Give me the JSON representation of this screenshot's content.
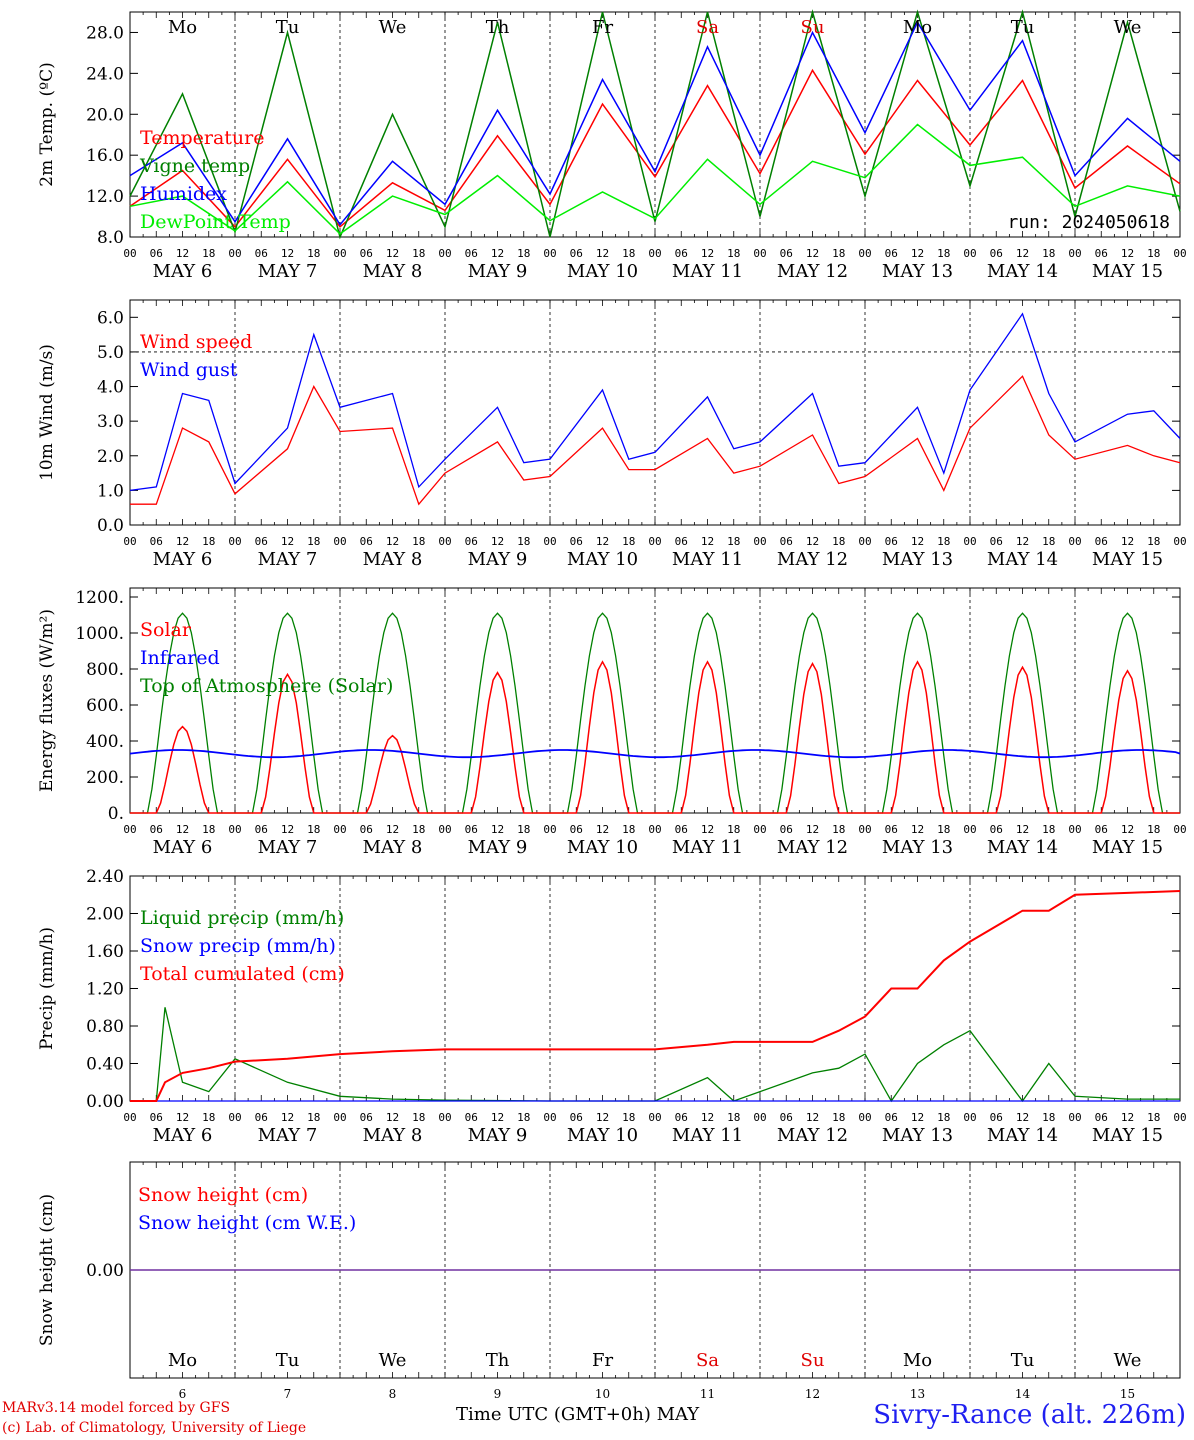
{
  "footer": {
    "model": "MARv3.14 model forced by GFS",
    "lab": "(c) Lab. of Climatology, University of Liege",
    "time_label": "Time UTC (GMT+0h) MAY",
    "site": "Sivry-Rance (alt. 226m)"
  },
  "chart_data": [
    {
      "type": "line",
      "ylabel": "2m Temp. (ºC)",
      "ylim": [
        8,
        30
      ],
      "yticks": [
        8,
        12,
        16,
        20,
        24,
        28
      ],
      "yticklabels": [
        "8.0",
        "12.0",
        "16.0",
        "20.0",
        "24.0",
        "28.0"
      ],
      "run_label": "run: 2024050618",
      "day_labels": [
        "Mo",
        "Tu",
        "We",
        "Th",
        "Fr",
        "Sa",
        "Su",
        "Mo",
        "Tu",
        "We"
      ],
      "weekend_color": "#e00000",
      "x_hours": [
        0,
        12,
        24,
        36,
        48,
        60,
        72,
        84,
        96,
        108,
        120,
        132,
        144,
        156,
        168,
        180,
        192,
        204,
        216,
        228,
        240
      ],
      "series": [
        {
          "name": "Temperature",
          "color": "#ff0000",
          "values": [
            11.0,
            14.5,
            9.0,
            15.6,
            9.0,
            13.3,
            10.6,
            17.9,
            11.2,
            21.0,
            13.9,
            22.8,
            14.2,
            24.3,
            16.1,
            23.3,
            17.0,
            23.3,
            12.8,
            16.9,
            13.2
          ]
        },
        {
          "name": "Vigne temp",
          "color": "#008000",
          "values": [
            12.0,
            22.0,
            8.5,
            28.0,
            8.0,
            20.0,
            9.0,
            29.0,
            8.0,
            31.0,
            9.5,
            31.0,
            10.0,
            31.0,
            12.0,
            31.0,
            13.0,
            31.0,
            10.0,
            29.0,
            10.5
          ]
        },
        {
          "name": "Humidex",
          "color": "#0000ff",
          "values": [
            14.0,
            17.2,
            9.5,
            17.6,
            9.2,
            15.4,
            11.2,
            20.4,
            12.2,
            23.4,
            14.4,
            26.6,
            16.0,
            28.0,
            18.2,
            29.0,
            20.4,
            27.2,
            14.0,
            19.6,
            15.4
          ]
        },
        {
          "name": "DewPoint Temp",
          "color": "#00ee00",
          "values": [
            11.0,
            12.0,
            8.6,
            13.4,
            8.3,
            12.0,
            10.2,
            14.0,
            9.6,
            12.4,
            9.8,
            15.6,
            11.2,
            15.4,
            13.8,
            19.0,
            15.0,
            15.8,
            11.0,
            13.0,
            12.0
          ]
        }
      ]
    },
    {
      "type": "line",
      "ylabel": "10m Wind (m/s)",
      "ylim": [
        0,
        6.5
      ],
      "yticks": [
        0,
        1,
        2,
        3,
        4,
        5,
        6
      ],
      "yticklabels": [
        "0.0",
        "1.0",
        "2.0",
        "3.0",
        "4.0",
        "5.0",
        "6.0"
      ],
      "ref_line": 5.0,
      "x_hours": [
        0,
        6,
        12,
        18,
        24,
        36,
        42,
        48,
        60,
        66,
        72,
        84,
        90,
        96,
        108,
        114,
        120,
        132,
        138,
        144,
        156,
        162,
        168,
        180,
        186,
        192,
        204,
        210,
        216,
        228,
        234,
        240
      ],
      "series": [
        {
          "name": "Wind speed",
          "color": "#ff0000",
          "values": [
            0.6,
            0.6,
            2.8,
            2.4,
            0.9,
            2.2,
            4.0,
            2.7,
            2.8,
            0.6,
            1.5,
            2.4,
            1.3,
            1.4,
            2.8,
            1.6,
            1.6,
            2.5,
            1.5,
            1.7,
            2.6,
            1.2,
            1.4,
            2.5,
            1.0,
            2.8,
            4.3,
            2.6,
            1.9,
            2.3,
            2.0,
            1.8
          ]
        },
        {
          "name": "Wind gust",
          "color": "#0000ff",
          "values": [
            1.0,
            1.1,
            3.8,
            3.6,
            1.2,
            2.8,
            5.5,
            3.4,
            3.8,
            1.1,
            1.9,
            3.4,
            1.8,
            1.9,
            3.9,
            1.9,
            2.1,
            3.7,
            2.2,
            2.4,
            3.8,
            1.7,
            1.8,
            3.4,
            1.5,
            3.9,
            6.1,
            3.8,
            2.4,
            3.2,
            3.3,
            2.5
          ]
        }
      ]
    },
    {
      "type": "line",
      "ylabel": "Energy fluxes (W/m²)",
      "ylim": [
        0,
        1250
      ],
      "yticks": [
        0,
        200,
        400,
        600,
        800,
        1000,
        1200
      ],
      "yticklabels": [
        "0.",
        "200.",
        "400.",
        "600.",
        "800.",
        "1000.",
        "1200."
      ],
      "solar_peaks": [
        480,
        770,
        430,
        780,
        840,
        840,
        830,
        840,
        810,
        790
      ],
      "toa_peak": 1110,
      "infrared_level": 330,
      "series": [
        {
          "name": "Solar",
          "color": "#ff0000"
        },
        {
          "name": "Infrared",
          "color": "#0000ff"
        },
        {
          "name": "Top of Atmosphere (Solar)",
          "color": "#008000"
        }
      ]
    },
    {
      "type": "line",
      "ylabel": "Precip (mm/h)",
      "ylim": [
        0,
        2.4
      ],
      "yticks": [
        0,
        0.4,
        0.8,
        1.2,
        1.6,
        2.0,
        2.4
      ],
      "yticklabels": [
        "0.00",
        "0.40",
        "0.80",
        "1.20",
        "1.60",
        "2.00",
        "2.40"
      ],
      "x_hours": [
        0,
        6,
        8,
        12,
        18,
        24,
        36,
        48,
        60,
        72,
        96,
        120,
        132,
        138,
        156,
        162,
        168,
        174,
        180,
        186,
        192,
        204,
        210,
        216,
        228,
        240
      ],
      "series": [
        {
          "name": "Liquid precip (mm/h)",
          "color": "#008000",
          "values": [
            0.0,
            0.0,
            1.0,
            0.2,
            0.1,
            0.45,
            0.2,
            0.05,
            0.02,
            0.01,
            0.0,
            0.0,
            0.25,
            0.0,
            0.3,
            0.35,
            0.5,
            0.0,
            0.4,
            0.6,
            0.75,
            0.0,
            0.4,
            0.05,
            0.02,
            0.02
          ]
        },
        {
          "name": "Snow precip (mm/h)",
          "color": "#0000ff",
          "values": [
            0.0,
            0.0,
            0.0,
            0.0,
            0.0,
            0.0,
            0.0,
            0.0,
            0.0,
            0.0,
            0.0,
            0.0,
            0.0,
            0.0,
            0.0,
            0.0,
            0.0,
            0.0,
            0.0,
            0.0,
            0.0,
            0.0,
            0.0,
            0.0,
            0.0,
            0.0
          ]
        },
        {
          "name": "Total cumulated (cm)",
          "color": "#ff0000",
          "values": [
            0.0,
            0.0,
            0.2,
            0.3,
            0.35,
            0.42,
            0.45,
            0.5,
            0.53,
            0.55,
            0.55,
            0.55,
            0.6,
            0.63,
            0.63,
            0.75,
            0.9,
            1.2,
            1.2,
            1.5,
            1.7,
            2.03,
            2.03,
            2.2,
            2.22,
            2.24
          ]
        }
      ]
    },
    {
      "type": "line",
      "ylabel": "Snow height (cm)",
      "ytick": "0.00",
      "bottom_day_labels": [
        "Mo",
        "Tu",
        "We",
        "Th",
        "Fr",
        "Sa",
        "Su",
        "Mo",
        "Tu",
        "We"
      ],
      "bottom_dates": [
        "6",
        "7",
        "8",
        "9",
        "10",
        "11",
        "12",
        "13",
        "14",
        "15"
      ],
      "series": [
        {
          "name": "Snow height (cm)",
          "color": "#ff0000",
          "values": [
            0,
            0
          ]
        },
        {
          "name": "Snow height (cm W.E.)",
          "color": "#0000ff",
          "values": [
            0,
            0
          ]
        }
      ]
    }
  ],
  "x_axis": {
    "hour_ticks": [
      "00",
      "06",
      "12",
      "18"
    ],
    "date_labels": [
      "MAY  6",
      "MAY  7",
      "MAY  8",
      "MAY  9",
      "MAY 10",
      "MAY 11",
      "MAY 12",
      "MAY 13",
      "MAY 14",
      "MAY 15"
    ]
  }
}
